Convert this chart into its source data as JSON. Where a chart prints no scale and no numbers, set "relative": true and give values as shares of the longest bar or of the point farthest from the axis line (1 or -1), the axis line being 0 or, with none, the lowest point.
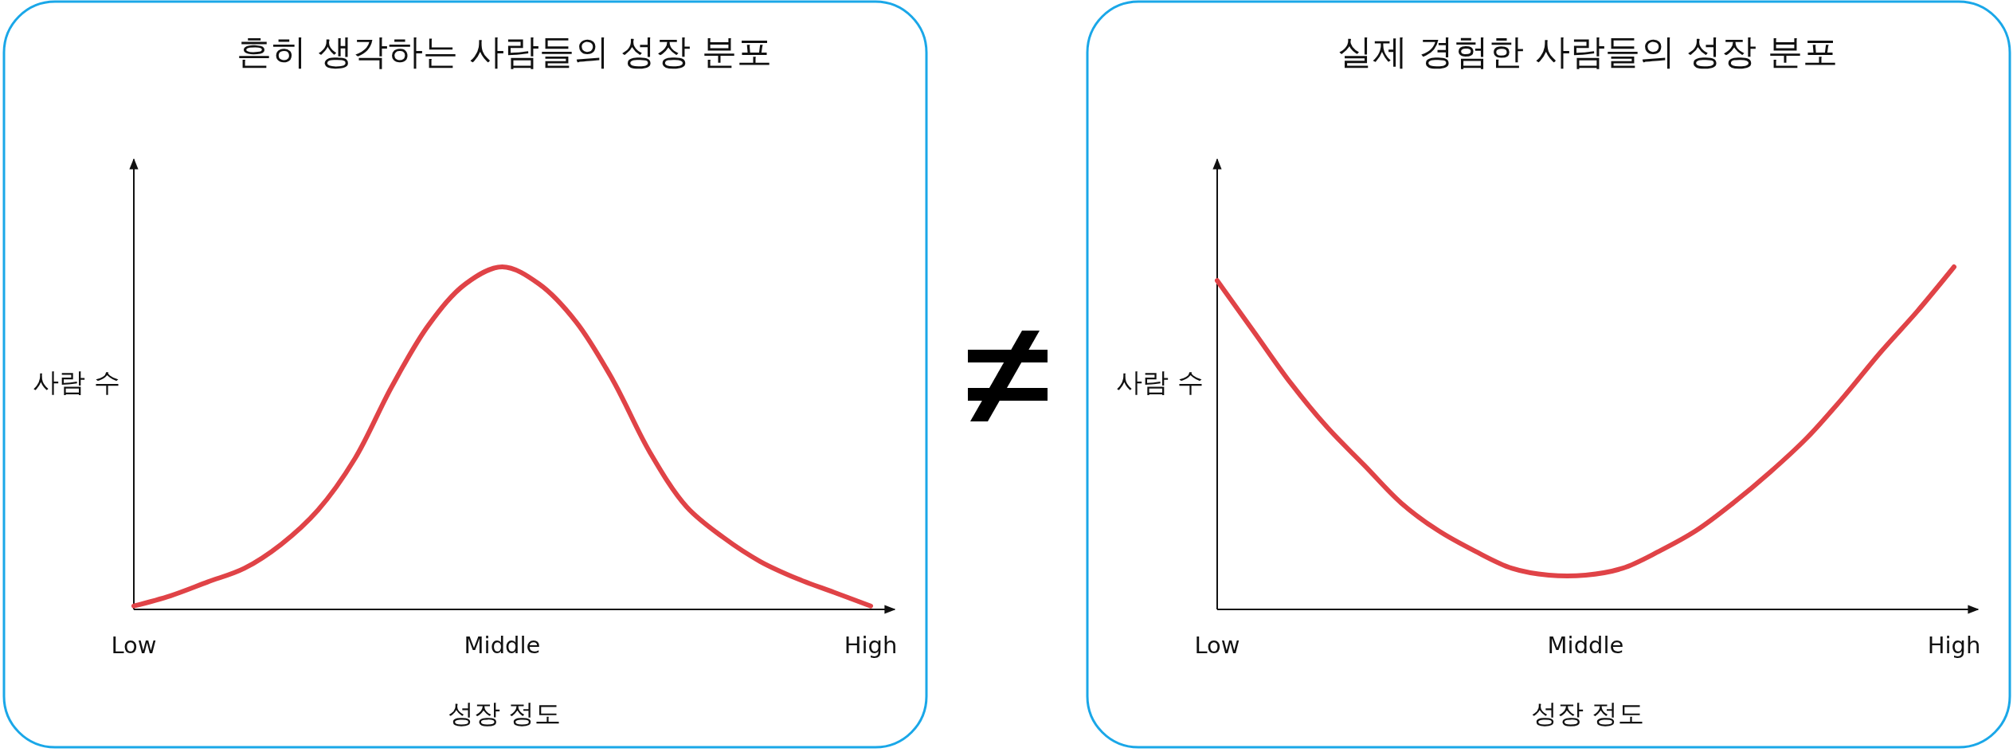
{
  "chart_data": [
    {
      "type": "line",
      "title": "흔히 생각하는 사람들의 성장 분포",
      "xlabel": "성장 정도",
      "ylabel": "사람 수",
      "relative": true,
      "categories": [
        "Low",
        null,
        null,
        null,
        null,
        null,
        null,
        null,
        null,
        null,
        "Middle",
        null,
        null,
        null,
        null,
        null,
        null,
        null,
        null,
        null,
        "High"
      ],
      "series": [
        {
          "color": "#e04347",
          "values": [
            0.01,
            0.04,
            0.08,
            0.12,
            0.19,
            0.29,
            0.44,
            0.65,
            0.83,
            0.95,
            1.0,
            0.95,
            0.84,
            0.67,
            0.46,
            0.3,
            0.21,
            0.14,
            0.09,
            0.05,
            0.01
          ]
        }
      ]
    },
    {
      "type": "line",
      "title": "실제 경험한 사람들의 성장 분포",
      "xlabel": "성장 정도",
      "ylabel": "사람 수",
      "relative": true,
      "categories": [
        "Low",
        null,
        null,
        null,
        null,
        null,
        null,
        null,
        null,
        null,
        "Middle",
        null,
        null,
        null,
        null,
        null,
        null,
        null,
        null,
        null,
        "High"
      ],
      "series": [
        {
          "color": "#e04347",
          "values": [
            0.96,
            0.81,
            0.66,
            0.53,
            0.42,
            0.31,
            0.23,
            0.17,
            0.12,
            0.1,
            0.1,
            0.12,
            0.17,
            0.23,
            0.31,
            0.4,
            0.5,
            0.62,
            0.75,
            0.87,
            1.0
          ]
        }
      ]
    }
  ]
}
